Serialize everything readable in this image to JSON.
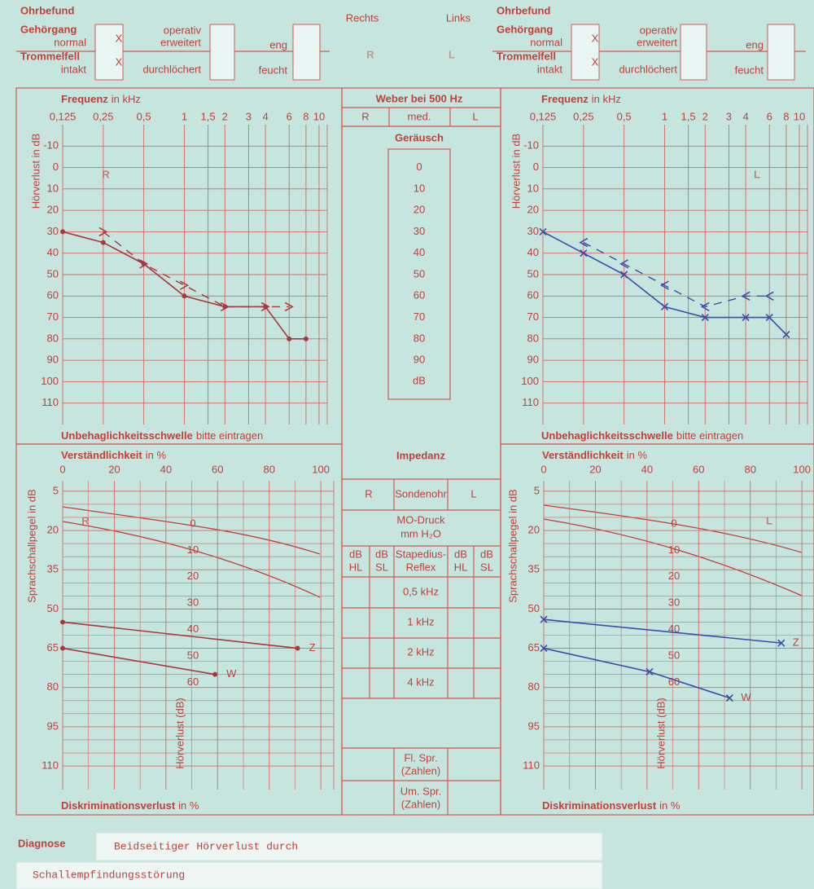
{
  "header": {
    "right": {
      "title": "Ohrbefund",
      "gehoergang": "Gehörgang",
      "normal": "normal",
      "normal_mark": "X",
      "operativ": "operativ",
      "erweitert": "erweitert",
      "eng": "eng",
      "trommelfell": "Trommelfell",
      "intakt": "intakt",
      "intakt_mark": "X",
      "durchloechert": "durchlöchert",
      "feucht": "feucht"
    },
    "left": {
      "title": "Ohrbefund",
      "gehoergang": "Gehörgang",
      "normal": "normal",
      "normal_mark": "X",
      "operativ": "operativ",
      "erweitert": "erweitert",
      "eng": "eng",
      "trommelfell": "Trommelfell",
      "intakt": "intakt",
      "intakt_mark": "X",
      "durchloechert": "durchlöchert",
      "feucht": "feucht"
    },
    "center": {
      "rechts": "Rechts",
      "links": "Links",
      "big_r": "R",
      "big_l": "L"
    }
  },
  "audiogram": {
    "frequency_label": "Frequenz",
    "frequency_unit": "in kHz",
    "y_label": "Hörverlust in dB",
    "xscale": "log",
    "xlim": [
      0.125,
      11.5
    ],
    "xticks": [
      {
        "value": 0.125,
        "label": "0,125"
      },
      {
        "value": 0.25,
        "label": "0,25"
      },
      {
        "value": 0.5,
        "label": "0,5"
      },
      1,
      {
        "value": 1.5,
        "label": "1,5"
      },
      2,
      3,
      4,
      6,
      8,
      10
    ],
    "ylim": [
      -20,
      120
    ],
    "yticks": [
      -10,
      0,
      10,
      20,
      30,
      40,
      50,
      60,
      70,
      80,
      90,
      100,
      110
    ],
    "footer": "Unbehaglichkeitsschwelle",
    "footer_unit": "bitte eintragen"
  },
  "audiogram_right": {
    "letter": "R",
    "air": {
      "x": [
        0.125,
        0.25,
        0.5,
        1,
        2,
        4,
        6,
        8
      ],
      "values": [
        30,
        35,
        45,
        60,
        65,
        65,
        80,
        80
      ],
      "color": "#a8383a"
    },
    "bone": {
      "x": [
        0.25,
        0.5,
        1,
        2,
        4,
        6
      ],
      "values": [
        30,
        45,
        55,
        65,
        65,
        65
      ],
      "color": "#a8383a"
    }
  },
  "audiogram_left": {
    "letter": "L",
    "air": {
      "x": [
        0.125,
        0.25,
        0.5,
        1,
        2,
        4,
        6,
        8
      ],
      "values": [
        30,
        40,
        50,
        65,
        70,
        70,
        70,
        78
      ],
      "color": "#3a4ea8"
    },
    "bone": {
      "x": [
        0.25,
        0.5,
        1,
        2,
        4,
        6
      ],
      "values": [
        35,
        45,
        55,
        65,
        60,
        60
      ],
      "color": "#3a4ea8"
    }
  },
  "weber": {
    "title": "Weber bei 500 Hz",
    "r": "R",
    "med": "med.",
    "l": "L",
    "noise_title": "Geräusch",
    "noise_scale": [
      0,
      10,
      20,
      30,
      40,
      50,
      60,
      70,
      80,
      90
    ],
    "unit": "dB"
  },
  "speech": {
    "title": "Verständlichkeit",
    "title_unit": "in %",
    "y_label": "Sprachschallpegel in dB",
    "xlim": [
      0,
      105
    ],
    "xticks": [
      0,
      20,
      40,
      60,
      80,
      100
    ],
    "ylim": [
      1,
      119
    ],
    "yticks": [
      5,
      20,
      35,
      50,
      65,
      80,
      95,
      110
    ],
    "curve_labels": [
      0,
      10,
      20,
      30,
      40,
      50,
      60
    ],
    "curve_axis_label": "Hörverlust (dB)",
    "footer": "Diskriminationsverlust",
    "footer_unit": "in %"
  },
  "speech_right": {
    "letter": "R",
    "color": "#a8383a",
    "series": [
      {
        "name": "Z",
        "x": [
          0,
          91
        ],
        "values": [
          55,
          65
        ]
      },
      {
        "name": "W",
        "x": [
          0,
          59
        ],
        "values": [
          65,
          75
        ]
      }
    ]
  },
  "speech_left": {
    "letter": "L",
    "color": "#3a4ea8",
    "series": [
      {
        "name": "Z",
        "x": [
          0,
          92
        ],
        "values": [
          54,
          63
        ]
      },
      {
        "name": "W",
        "x": [
          0,
          41,
          72
        ],
        "values": [
          65,
          74,
          84
        ]
      }
    ]
  },
  "impedance": {
    "title": "Impedanz",
    "r": "R",
    "probe": "Sondenohr",
    "l": "L",
    "mo_pressure": "MO-Druck",
    "mo_unit": "mm H₂O",
    "db": "dB",
    "hl": "HL",
    "sl": "SL",
    "stapedius": "Stapedius-",
    "reflex": "Reflex",
    "rows": [
      "0,5 kHz",
      "1 kHz",
      "2 kHz",
      "4 kHz"
    ],
    "fl_spr": [
      "Fl. Spr.",
      "(Zahlen)"
    ],
    "um_spr": [
      "Um. Spr.",
      "(Zahlen)"
    ]
  },
  "diagnosis": {
    "label": "Diagnose",
    "lines": [
      "Beidseitiger Hörverlust durch",
      "Schallempfindungsstörung"
    ]
  }
}
